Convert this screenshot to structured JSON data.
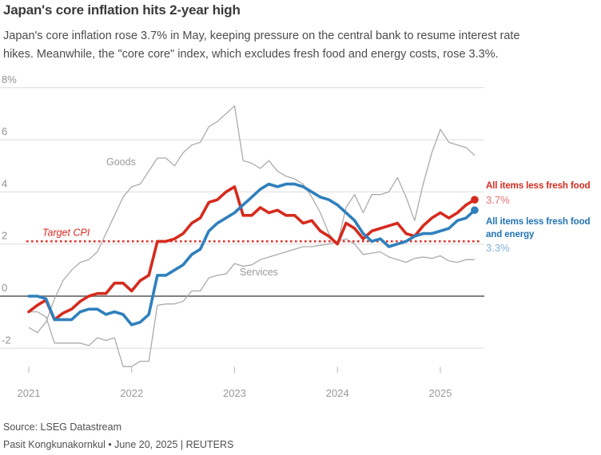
{
  "header": {
    "title": "Japan's core inflation hits 2-year high",
    "subtitle_line1": "Japan's core inflation rose 3.7% in May, keeping pressure on the central bank to resume interest rate",
    "subtitle_line2": "hikes. Meanwhile, the \"core core\" index, which excludes fresh food and energy costs, rose 3.3%."
  },
  "chart_data": {
    "type": "line",
    "title": "Japan's core inflation hits 2-year high",
    "x_start": "2021-01",
    "x_end": "2025-05",
    "x_frequency": "monthly",
    "x_tick_labels": [
      "2021",
      "2022",
      "2023",
      "2024",
      "2025"
    ],
    "y_ticks": [
      8,
      6,
      4,
      2,
      0,
      -2
    ],
    "y_tick_labels": [
      "8%",
      "6",
      "4",
      "2",
      "0",
      "-2"
    ],
    "ylim": [
      -3,
      8.6
    ],
    "ylabel": "",
    "xlabel": "",
    "grid": "horizontal",
    "legend_position": "inline-and-right",
    "target_line": {
      "label": "Target CPI",
      "value": 2,
      "color": "#e0281e",
      "style": "dotted"
    },
    "series": [
      {
        "name": "Goods",
        "color": "#ababab",
        "stroke_width": 1.3,
        "end_dot": false,
        "values": [
          -1.2,
          -1.4,
          -1.0,
          -0.1,
          0.6,
          1.0,
          1.3,
          1.4,
          1.7,
          2.4,
          3.1,
          3.8,
          4.2,
          4.3,
          4.8,
          5.3,
          5.3,
          5.0,
          5.5,
          5.8,
          5.9,
          6.5,
          6.7,
          7.0,
          7.3,
          5.2,
          5.1,
          4.9,
          5.2,
          4.8,
          4.6,
          4.5,
          4.3,
          3.8,
          3.2,
          2.4,
          2.0,
          3.4,
          3.9,
          3.2,
          3.9,
          3.9,
          4.0,
          4.55,
          3.8,
          2.9,
          4.3,
          5.5,
          6.4,
          5.9,
          5.8,
          5.7,
          5.4
        ]
      },
      {
        "name": "Services",
        "color": "#ababab",
        "stroke_width": 1.3,
        "end_dot": false,
        "values": [
          -0.6,
          -0.6,
          -0.8,
          -1.8,
          -1.8,
          -1.8,
          -1.8,
          -1.9,
          -1.6,
          -1.7,
          -1.6,
          -2.7,
          -2.7,
          -2.5,
          -2.5,
          -0.35,
          -0.3,
          -0.3,
          -0.2,
          0.2,
          0.2,
          0.7,
          0.8,
          0.85,
          1.25,
          1.15,
          1.2,
          1.4,
          1.5,
          1.6,
          1.7,
          1.8,
          1.9,
          1.9,
          1.95,
          2.0,
          2.1,
          2.2,
          2.0,
          1.6,
          1.65,
          1.7,
          1.5,
          1.4,
          1.3,
          1.45,
          1.5,
          1.45,
          1.55,
          1.35,
          1.3,
          1.4,
          1.4
        ]
      },
      {
        "name": "All items less fresh food",
        "color": "#d52b1e",
        "stroke_width": 3.6,
        "end_dot": true,
        "end_value": 3.7,
        "values": [
          -0.6,
          -0.35,
          -0.15,
          -0.9,
          -0.65,
          -0.5,
          -0.2,
          0.0,
          0.1,
          0.1,
          0.5,
          0.5,
          0.2,
          0.6,
          0.8,
          2.1,
          2.1,
          2.2,
          2.4,
          2.8,
          3.0,
          3.6,
          3.7,
          4.0,
          4.2,
          3.1,
          3.1,
          3.4,
          3.2,
          3.3,
          3.1,
          3.1,
          2.8,
          2.9,
          2.5,
          2.3,
          2.0,
          2.8,
          2.6,
          2.2,
          2.5,
          2.6,
          2.7,
          2.8,
          2.4,
          2.3,
          2.7,
          3.0,
          3.2,
          3.0,
          3.2,
          3.5,
          3.7
        ]
      },
      {
        "name": "All items less fresh food and energy",
        "color": "#2f80bd",
        "stroke_width": 3.6,
        "end_dot": true,
        "end_value": 3.3,
        "values": [
          0.0,
          0.0,
          -0.1,
          -0.9,
          -0.9,
          -0.9,
          -0.6,
          -0.5,
          -0.5,
          -0.7,
          -0.6,
          -0.7,
          -1.1,
          -1.0,
          -0.7,
          0.8,
          0.8,
          1.0,
          1.2,
          1.6,
          1.8,
          2.5,
          2.8,
          3.0,
          3.2,
          3.5,
          3.8,
          4.1,
          4.3,
          4.2,
          4.3,
          4.3,
          4.2,
          4.0,
          3.8,
          3.7,
          3.5,
          3.2,
          2.9,
          2.4,
          2.1,
          2.2,
          1.9,
          2.0,
          2.1,
          2.3,
          2.4,
          2.4,
          2.5,
          2.6,
          2.9,
          3.0,
          3.3
        ]
      }
    ]
  },
  "right_labels": {
    "core": {
      "line1": "All items less fresh food",
      "value": "3.7%"
    },
    "corecore": {
      "line1": "All items less fresh food",
      "line2": "and energy",
      "value": "3.3%"
    }
  },
  "footer": {
    "source": "Source: LSEG Datastream",
    "byline": "Pasit Kongkunakornkul • June 20, 2025 | REUTERS"
  }
}
